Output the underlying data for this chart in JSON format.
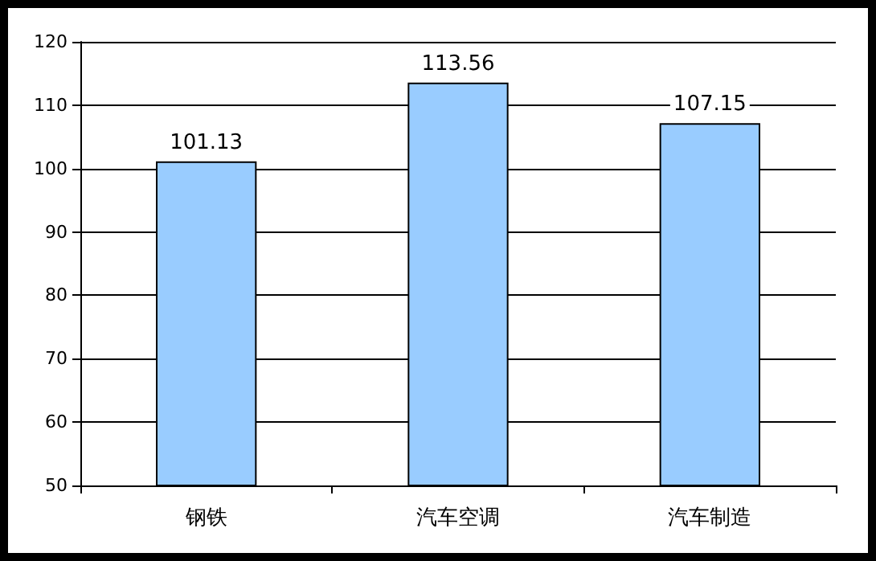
{
  "chart_data": {
    "type": "bar",
    "categories": [
      "钢铁",
      "汽车空调",
      "汽车制造"
    ],
    "values": [
      101.13,
      113.56,
      107.15
    ],
    "color": "#99ccff",
    "ylim": [
      50,
      120
    ],
    "yticks": [
      50,
      60,
      70,
      80,
      90,
      100,
      110,
      120
    ],
    "grid": "y",
    "data_labels": true
  }
}
